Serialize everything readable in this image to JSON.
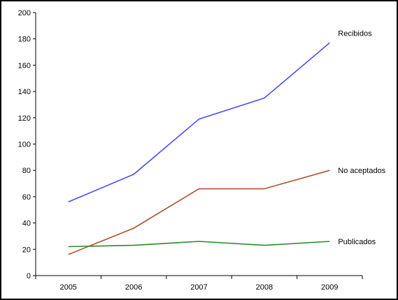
{
  "chart_data": {
    "type": "line",
    "categories": [
      "2005",
      "2006",
      "2007",
      "2008",
      "2009"
    ],
    "y_ticks": [
      0,
      20,
      40,
      60,
      80,
      100,
      120,
      140,
      160,
      180,
      200
    ],
    "ylim": [
      0,
      200
    ],
    "grid": false,
    "legend": "labels at line ends (right)",
    "series": [
      {
        "name": "Recibidos",
        "values": [
          56,
          77,
          119,
          135,
          177
        ],
        "color": "#4d4dff"
      },
      {
        "name": "No aceptados",
        "values": [
          16,
          36,
          66,
          66,
          80
        ],
        "color": "#b0502c"
      },
      {
        "name": "Publicados",
        "values": [
          22,
          23,
          26,
          23,
          26
        ],
        "color": "#2a8a2a"
      }
    ]
  }
}
